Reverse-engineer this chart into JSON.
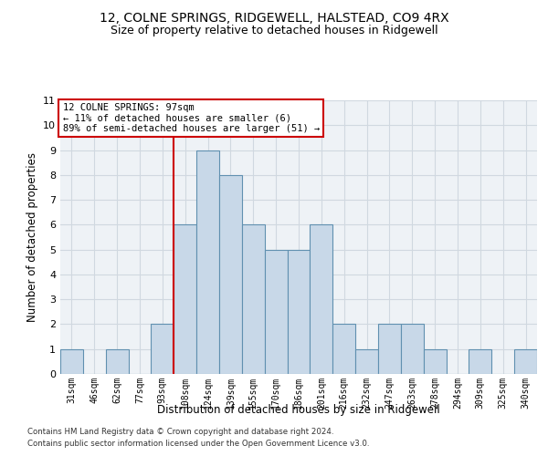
{
  "title1": "12, COLNE SPRINGS, RIDGEWELL, HALSTEAD, CO9 4RX",
  "title2": "Size of property relative to detached houses in Ridgewell",
  "xlabel": "Distribution of detached houses by size in Ridgewell",
  "ylabel": "Number of detached properties",
  "bin_labels": [
    "31sqm",
    "46sqm",
    "62sqm",
    "77sqm",
    "93sqm",
    "108sqm",
    "124sqm",
    "139sqm",
    "155sqm",
    "170sqm",
    "186sqm",
    "201sqm",
    "216sqm",
    "232sqm",
    "247sqm",
    "263sqm",
    "278sqm",
    "294sqm",
    "309sqm",
    "325sqm",
    "340sqm"
  ],
  "bar_values": [
    1,
    0,
    1,
    0,
    2,
    6,
    9,
    8,
    6,
    5,
    5,
    6,
    2,
    1,
    2,
    2,
    1,
    0,
    1,
    0,
    1
  ],
  "bar_color": "#c8d8e8",
  "bar_edge_color": "#6090b0",
  "grid_color": "#d0d8e0",
  "property_bin_index": 4,
  "annotation_title": "12 COLNE SPRINGS: 97sqm",
  "annotation_line1": "← 11% of detached houses are smaller (6)",
  "annotation_line2": "89% of semi-detached houses are larger (51) →",
  "vline_color": "#cc0000",
  "annotation_box_color": "#cc0000",
  "ylim": [
    0,
    11
  ],
  "yticks": [
    0,
    1,
    2,
    3,
    4,
    5,
    6,
    7,
    8,
    9,
    10,
    11
  ],
  "footer1": "Contains HM Land Registry data © Crown copyright and database right 2024.",
  "footer2": "Contains public sector information licensed under the Open Government Licence v3.0.",
  "bg_color": "#eef2f6"
}
